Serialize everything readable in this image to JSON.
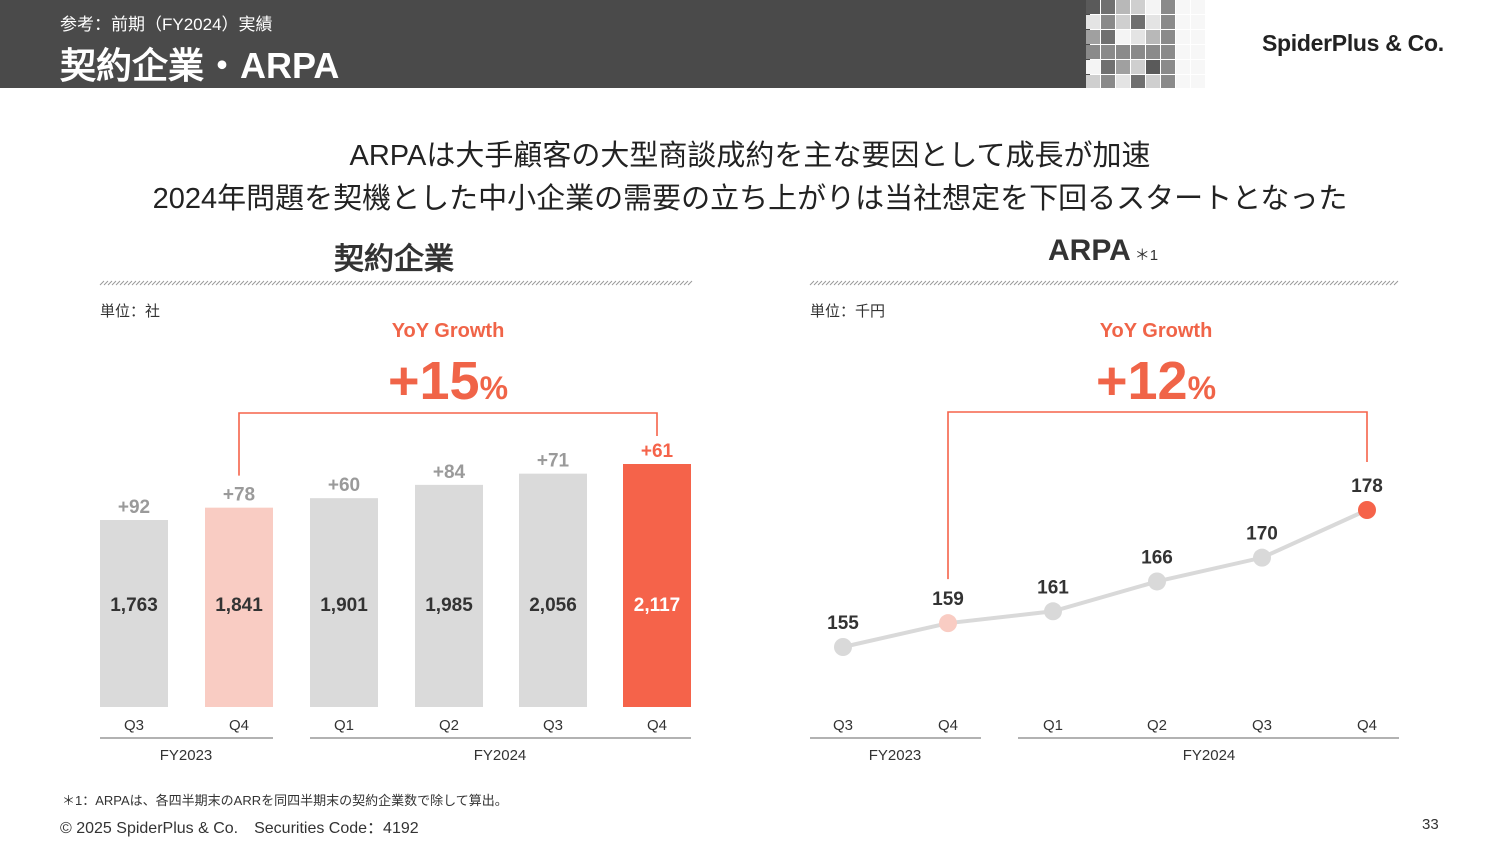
{
  "header": {
    "subtitle": "参考：前期（FY2024）実績",
    "title": "契約企業・ARPA",
    "logo": "SpiderPlus & Co."
  },
  "headline": {
    "line1": "ARPAは大手顧客の大型商談成約を主な要因として成長が加速",
    "line2": "2024年問題を契機とした中小企業の需要の立ち上がりは当社想定を下回るスタートとなった"
  },
  "footer": {
    "footnote": "＊1：ARPAは、各四半期末のARRを同四半期末の契約企業数で除して算出。",
    "copyright": "© 2025 SpiderPlus & Co.　Securities Code：4192",
    "page": "33"
  },
  "colors": {
    "accent": "#f5634a",
    "accent_light": "#f9ccc3",
    "bar_gray": "#dadada",
    "line_gray": "#d9d9d9"
  },
  "chart_data": [
    {
      "type": "bar",
      "title": "契約企業",
      "unit": "単位：社",
      "yoy_label": "YoY Growth",
      "yoy_value": "+15",
      "yoy_suffix": "%",
      "categories": [
        "Q3",
        "Q4",
        "Q1",
        "Q2",
        "Q3",
        "Q4"
      ],
      "groups": [
        {
          "label": "FY2023",
          "count": 2
        },
        {
          "label": "FY2024",
          "count": 4
        }
      ],
      "values": [
        1763,
        1841,
        1901,
        1985,
        2056,
        2117
      ],
      "value_labels": [
        "1,763",
        "1,841",
        "1,901",
        "1,985",
        "2,056",
        "2,117"
      ],
      "increments": [
        "+92",
        "+78",
        "+60",
        "+84",
        "+71",
        "+61"
      ],
      "highlight": {
        "compare_index": 1,
        "current_index": 5
      }
    },
    {
      "type": "line",
      "title": "ARPA",
      "title_note": "＊1",
      "unit": "単位：千円",
      "yoy_label": "YoY Growth",
      "yoy_value": "+12",
      "yoy_suffix": "%",
      "categories": [
        "Q3",
        "Q4",
        "Q1",
        "Q2",
        "Q3",
        "Q4"
      ],
      "groups": [
        {
          "label": "FY2023",
          "count": 2
        },
        {
          "label": "FY2024",
          "count": 4
        }
      ],
      "values": [
        155,
        159,
        161,
        166,
        170,
        178
      ],
      "highlight": {
        "compare_index": 1,
        "current_index": 5
      }
    }
  ]
}
